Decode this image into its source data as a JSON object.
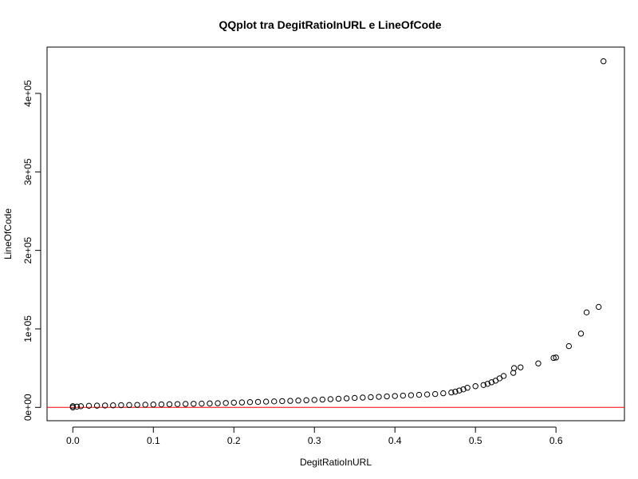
{
  "chart_data": {
    "type": "scatter",
    "title": "QQplot tra DegitRatioInURL e LineOfCode",
    "xlabel": "DegitRatioInURL",
    "ylabel": "LineOfCode",
    "xlim": [
      -0.032,
      0.685
    ],
    "ylim": [
      -17000,
      459000
    ],
    "x_ticks": [
      0.0,
      0.1,
      0.2,
      0.3,
      0.4,
      0.5,
      0.6
    ],
    "x_tick_labels": [
      "0.0",
      "0.1",
      "0.2",
      "0.3",
      "0.4",
      "0.5",
      "0.6"
    ],
    "y_ticks": [
      0,
      100000,
      200000,
      300000,
      400000
    ],
    "y_tick_labels": [
      "0e+00",
      "1e+05",
      "2e+05",
      "3e+05",
      "4e+05"
    ],
    "reference_line": {
      "y": 0,
      "color": "#ff0000"
    },
    "marker": "open-circle",
    "grid": false,
    "x": [
      0.0,
      0.0,
      0.005,
      0.01,
      0.02,
      0.03,
      0.04,
      0.05,
      0.06,
      0.07,
      0.08,
      0.09,
      0.1,
      0.11,
      0.12,
      0.13,
      0.14,
      0.15,
      0.16,
      0.17,
      0.18,
      0.19,
      0.2,
      0.21,
      0.22,
      0.23,
      0.24,
      0.25,
      0.26,
      0.27,
      0.28,
      0.29,
      0.3,
      0.31,
      0.32,
      0.33,
      0.34,
      0.35,
      0.36,
      0.37,
      0.38,
      0.39,
      0.4,
      0.41,
      0.42,
      0.43,
      0.44,
      0.45,
      0.46,
      0.47,
      0.475,
      0.48,
      0.485,
      0.49,
      0.5,
      0.51,
      0.515,
      0.52,
      0.525,
      0.53,
      0.535,
      0.547,
      0.548,
      0.556,
      0.578,
      0.597,
      0.6,
      0.616,
      0.631,
      0.638,
      0.653,
      0.659
    ],
    "y": [
      0,
      1500,
      1000,
      1500,
      2000,
      2200,
      2400,
      2600,
      2800,
      3000,
      3200,
      3400,
      3600,
      3800,
      4000,
      4200,
      4400,
      4600,
      4800,
      5000,
      5300,
      5600,
      6000,
      6300,
      6700,
      7000,
      7300,
      7600,
      8000,
      8300,
      8700,
      9100,
      9500,
      10000,
      10500,
      11000,
      11500,
      12000,
      12500,
      13000,
      13500,
      14000,
      14500,
      15000,
      15500,
      16000,
      16500,
      17000,
      18000,
      19000,
      20000,
      21500,
      23000,
      25000,
      27000,
      28500,
      30000,
      32000,
      34000,
      37000,
      40000,
      44000,
      50000,
      51000,
      56000,
      63000,
      63500,
      78000,
      94000,
      121000,
      128000,
      441000
    ]
  }
}
